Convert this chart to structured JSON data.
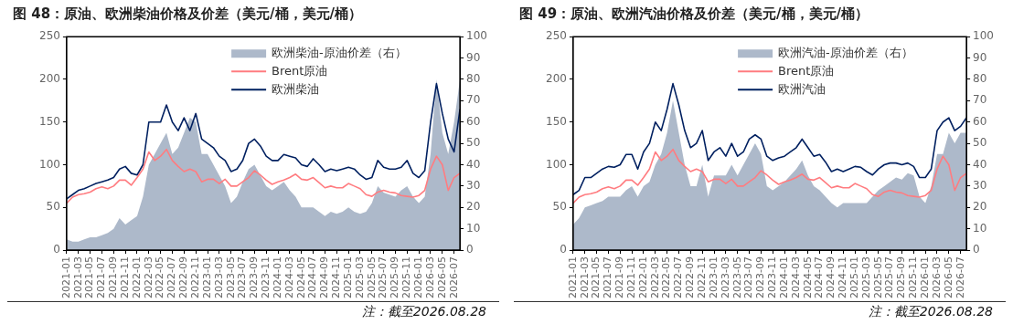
{
  "chart_data": [
    {
      "type": "line",
      "title": "图 48：原油、欧洲柴油价格及价差（美元/桶，美元/桶）",
      "x": [
        "2021-01",
        "2021-02",
        "2021-03",
        "2021-04",
        "2021-05",
        "2021-06",
        "2021-07",
        "2021-08",
        "2021-09",
        "2021-10",
        "2021-11",
        "2021-12",
        "2022-01",
        "2022-02",
        "2022-03",
        "2022-04",
        "2022-05",
        "2022-06",
        "2022-07",
        "2022-08",
        "2022-09",
        "2022-10",
        "2022-11",
        "2022-12",
        "2023-01",
        "2023-02",
        "2023-03",
        "2023-04",
        "2023-05",
        "2023-06",
        "2023-07",
        "2023-08",
        "2023-09",
        "2023-10",
        "2023-11",
        "2023-12",
        "2024-01",
        "2024-02",
        "2024-03",
        "2024-04",
        "2024-05",
        "2024-06",
        "2024-07",
        "2024-08",
        "2024-09",
        "2024-10",
        "2024-11",
        "2024-12",
        "2025-01",
        "2025-02",
        "2025-03",
        "2025-04",
        "2025-05",
        "2025-06",
        "2025-07",
        "2025-08",
        "2025-09",
        "2025-10",
        "2025-11",
        "2025-12",
        "2026-01",
        "2026-02",
        "2026-03",
        "2026-04",
        "2026-05",
        "2026-06",
        "2026-07",
        "2026-08"
      ],
      "series": [
        {
          "name": "欧洲柴油-原油价差（右）",
          "type": "area",
          "axis": "y2",
          "color": "#adb9ca",
          "values": [
            5,
            4,
            4,
            5,
            6,
            6,
            7,
            8,
            10,
            15,
            12,
            14,
            16,
            25,
            40,
            45,
            50,
            55,
            45,
            48,
            55,
            62,
            60,
            45,
            45,
            40,
            35,
            30,
            22,
            25,
            32,
            38,
            40,
            35,
            30,
            28,
            30,
            32,
            28,
            25,
            20,
            20,
            20,
            18,
            16,
            18,
            17,
            18,
            20,
            18,
            17,
            18,
            22,
            30,
            27,
            26,
            25,
            28,
            30,
            25,
            22,
            25,
            45,
            80,
            55,
            45,
            60,
            80
          ]
        },
        {
          "name": "Brent原油",
          "type": "line",
          "color": "#ff7c80",
          "values": [
            55,
            62,
            65,
            66,
            68,
            72,
            74,
            72,
            75,
            82,
            82,
            76,
            85,
            95,
            115,
            105,
            110,
            118,
            105,
            98,
            92,
            95,
            92,
            80,
            83,
            83,
            78,
            83,
            75,
            75,
            80,
            85,
            93,
            88,
            82,
            77,
            80,
            82,
            85,
            89,
            83,
            82,
            85,
            79,
            73,
            75,
            73,
            73,
            78,
            75,
            72,
            65,
            63,
            68,
            70,
            68,
            67,
            64,
            63,
            62,
            64,
            70,
            95,
            110,
            100,
            70,
            85,
            90
          ]
        },
        {
          "name": "欧洲柴油",
          "type": "line",
          "color": "#002060",
          "values": [
            60,
            65,
            70,
            72,
            75,
            78,
            80,
            82,
            85,
            95,
            98,
            90,
            88,
            100,
            150,
            150,
            150,
            170,
            150,
            140,
            155,
            140,
            160,
            130,
            125,
            120,
            110,
            105,
            92,
            95,
            105,
            125,
            130,
            122,
            110,
            105,
            105,
            112,
            110,
            108,
            100,
            98,
            107,
            100,
            92,
            95,
            93,
            95,
            97,
            95,
            88,
            83,
            85,
            105,
            97,
            95,
            95,
            97,
            105,
            90,
            85,
            93,
            150,
            195,
            160,
            130,
            115,
            165
          ]
        }
      ],
      "xlim": [
        "2021-01",
        "2026-08"
      ],
      "xticks": [
        "2021-01",
        "2021-03",
        "2021-05",
        "2021-07",
        "2021-09",
        "2021-11",
        "2022-01",
        "2022-03",
        "2022-05",
        "2022-07",
        "2022-09",
        "2022-11",
        "2023-01",
        "2023-03",
        "2023-05",
        "2023-07",
        "2023-09",
        "2023-11",
        "2024-01",
        "2024-03",
        "2024-05",
        "2024-07",
        "2024-09",
        "2024-11",
        "2025-01",
        "2025-03",
        "2025-05",
        "2025-07",
        "2025-09",
        "2025-11",
        "2026-01",
        "2026-03",
        "2026-05",
        "2026-07"
      ],
      "ylim": [
        0,
        250
      ],
      "yticks": [
        0,
        50,
        100,
        150,
        200,
        250
      ],
      "y2lim": [
        0,
        100
      ],
      "y2ticks": [
        0,
        10,
        20,
        30,
        40,
        50,
        60,
        70,
        80,
        90,
        100
      ],
      "legend": "top right",
      "grid": false,
      "annotations": [
        "注：截至2026.08.28"
      ]
    },
    {
      "type": "line",
      "title": "图 49：原油、欧洲汽油价格及价差（美元/桶，美元/桶）",
      "x": [
        "2021-01",
        "2021-02",
        "2021-03",
        "2021-04",
        "2021-05",
        "2021-06",
        "2021-07",
        "2021-08",
        "2021-09",
        "2021-10",
        "2021-11",
        "2021-12",
        "2022-01",
        "2022-02",
        "2022-03",
        "2022-04",
        "2022-05",
        "2022-06",
        "2022-07",
        "2022-08",
        "2022-09",
        "2022-10",
        "2022-11",
        "2022-12",
        "2023-01",
        "2023-02",
        "2023-03",
        "2023-04",
        "2023-05",
        "2023-06",
        "2023-07",
        "2023-08",
        "2023-09",
        "2023-10",
        "2023-11",
        "2023-12",
        "2024-01",
        "2024-02",
        "2024-03",
        "2024-04",
        "2024-05",
        "2024-06",
        "2024-07",
        "2024-08",
        "2024-09",
        "2024-10",
        "2024-11",
        "2024-12",
        "2025-01",
        "2025-02",
        "2025-03",
        "2025-04",
        "2025-05",
        "2025-06",
        "2025-07",
        "2025-08",
        "2025-09",
        "2025-10",
        "2025-11",
        "2025-12",
        "2026-01",
        "2026-02",
        "2026-03",
        "2026-04",
        "2026-05",
        "2026-06",
        "2026-07",
        "2026-08"
      ],
      "series": [
        {
          "name": "欧洲汽油-原油价差（右）",
          "type": "area",
          "axis": "y2",
          "color": "#adb9ca",
          "values": [
            12,
            15,
            20,
            21,
            22,
            23,
            25,
            25,
            25,
            28,
            30,
            25,
            30,
            32,
            40,
            45,
            55,
            70,
            55,
            40,
            30,
            30,
            40,
            25,
            35,
            35,
            35,
            40,
            35,
            40,
            45,
            50,
            45,
            30,
            28,
            30,
            32,
            35,
            38,
            42,
            35,
            30,
            28,
            25,
            22,
            20,
            22,
            22,
            22,
            22,
            22,
            25,
            28,
            30,
            32,
            34,
            33,
            36,
            35,
            25,
            22,
            30,
            45,
            45,
            55,
            50,
            55,
            55
          ]
        },
        {
          "name": "Brent原油",
          "type": "line",
          "color": "#ff7c80",
          "values": [
            55,
            62,
            65,
            66,
            68,
            72,
            74,
            72,
            75,
            82,
            82,
            76,
            85,
            95,
            115,
            105,
            110,
            118,
            105,
            98,
            92,
            95,
            92,
            80,
            83,
            83,
            78,
            83,
            75,
            75,
            80,
            85,
            93,
            88,
            82,
            77,
            80,
            82,
            85,
            89,
            83,
            82,
            85,
            79,
            73,
            75,
            73,
            73,
            78,
            75,
            72,
            65,
            63,
            68,
            70,
            68,
            67,
            64,
            63,
            62,
            64,
            70,
            95,
            110,
            100,
            70,
            85,
            90
          ]
        },
        {
          "name": "欧洲汽油",
          "type": "line",
          "color": "#002060",
          "values": [
            65,
            70,
            85,
            85,
            90,
            95,
            98,
            97,
            100,
            112,
            112,
            95,
            115,
            125,
            150,
            140,
            165,
            195,
            170,
            140,
            120,
            125,
            140,
            105,
            115,
            120,
            110,
            125,
            110,
            115,
            130,
            135,
            130,
            110,
            105,
            108,
            110,
            115,
            120,
            130,
            120,
            110,
            112,
            103,
            92,
            95,
            92,
            95,
            98,
            97,
            92,
            88,
            95,
            100,
            102,
            102,
            100,
            102,
            98,
            85,
            85,
            95,
            140,
            150,
            155,
            140,
            145,
            155
          ]
        }
      ],
      "xlim": [
        "2021-01",
        "2026-08"
      ],
      "xticks": [
        "2021-01",
        "2021-03",
        "2021-05",
        "2021-07",
        "2021-09",
        "2021-11",
        "2022-01",
        "2022-03",
        "2022-05",
        "2022-07",
        "2022-09",
        "2022-11",
        "2023-01",
        "2023-03",
        "2023-05",
        "2023-07",
        "2023-09",
        "2023-11",
        "2024-01",
        "2024-03",
        "2024-05",
        "2024-07",
        "2024-09",
        "2024-11",
        "2025-01",
        "2025-03",
        "2025-05",
        "2025-07",
        "2025-09",
        "2025-11",
        "2026-01",
        "2026-03",
        "2026-05",
        "2026-07"
      ],
      "ylim": [
        0,
        250
      ],
      "yticks": [
        0,
        50,
        100,
        150,
        200,
        250
      ],
      "y2lim": [
        0,
        100
      ],
      "y2ticks": [
        0,
        10,
        20,
        30,
        40,
        50,
        60,
        70,
        80,
        90,
        100
      ],
      "legend": "top right",
      "grid": false,
      "annotations": [
        "注：截至2026.08.28"
      ]
    }
  ]
}
